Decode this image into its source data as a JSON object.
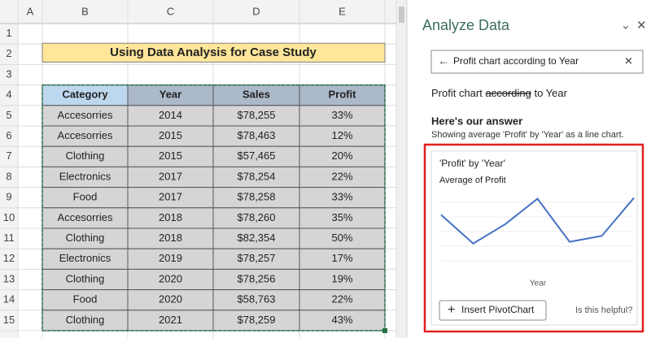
{
  "sheet": {
    "column_headers": [
      "A",
      "B",
      "C",
      "D",
      "E"
    ],
    "row_headers": [
      "1",
      "2",
      "3",
      "4",
      "5",
      "6",
      "7",
      "8",
      "9",
      "10",
      "11",
      "12",
      "13",
      "14",
      "15"
    ],
    "title": "Using Data Analysis for Case Study",
    "table": {
      "header": [
        "Category",
        "Year",
        "Sales",
        "Profit"
      ],
      "rows": [
        [
          "Accesorries",
          "2014",
          "$78,255",
          "33%"
        ],
        [
          "Accesorries",
          "2015",
          "$78,463",
          "12%"
        ],
        [
          "Clothing",
          "2015",
          "$57,465",
          "20%"
        ],
        [
          "Electronics",
          "2017",
          "$78,254",
          "22%"
        ],
        [
          "Food",
          "2017",
          "$78,258",
          "33%"
        ],
        [
          "Accesorries",
          "2018",
          "$78,260",
          "35%"
        ],
        [
          "Clothing",
          "2018",
          "$82,354",
          "50%"
        ],
        [
          "Electronics",
          "2019",
          "$78,257",
          "17%"
        ],
        [
          "Clothing",
          "2020",
          "$78,256",
          "19%"
        ],
        [
          "Food",
          "2020",
          "$58,763",
          "22%"
        ],
        [
          "Clothing",
          "2021",
          "$78,259",
          "43%"
        ]
      ]
    }
  },
  "pane": {
    "title": "Analyze Data",
    "search": "Profit chart according to Year",
    "query": {
      "before": "Profit chart",
      "struck": "according",
      "after": "to Year"
    },
    "answer_heading": "Here's our answer",
    "answer_note": "Showing average 'Profit' by 'Year' as a line chart.",
    "chart": {
      "type": "line",
      "title": "'Profit' by 'Year'",
      "ylabel": "Average of Profit",
      "xlabel": "Year",
      "values": [
        33,
        16,
        27.5,
        42.5,
        17,
        20.5,
        43
      ],
      "ylim": [
        0,
        50
      ],
      "color": "#4472c4"
    },
    "button": "Insert PivotChart",
    "feedback": "Is this helpful?"
  }
}
